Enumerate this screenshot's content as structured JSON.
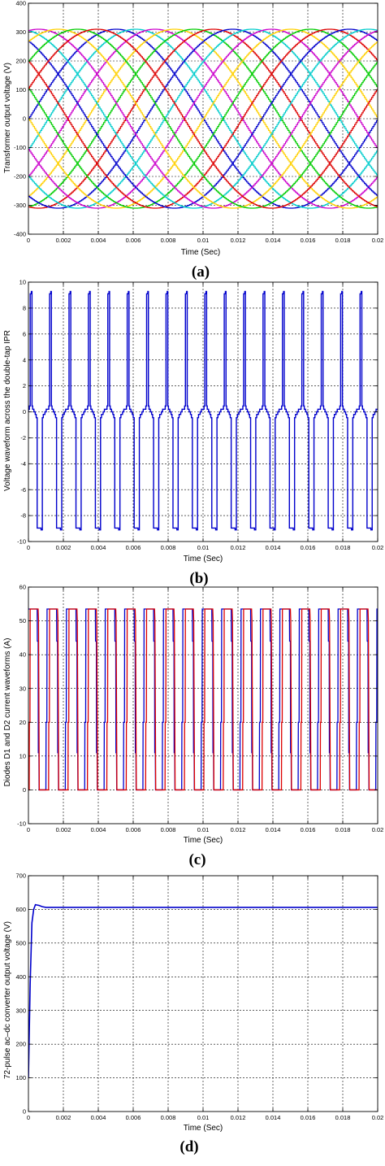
{
  "chart_data": [
    {
      "type": "line",
      "panel_label": "(a)",
      "xlabel": "Time (Sec)",
      "ylabel": "Transformer output voltage (V)",
      "xlim": [
        0,
        0.02
      ],
      "ylim": [
        -400,
        400
      ],
      "xticks": [
        "0",
        "0.002",
        "0.004",
        "0.006",
        "0.008",
        "0.01",
        "0.012",
        "0.014",
        "0.016",
        "0.018",
        "0.02"
      ],
      "yticks": [
        "400",
        "300",
        "200",
        "100",
        "0",
        "-100",
        "-200",
        "-300",
        "-400"
      ],
      "grid": true,
      "waveform": {
        "kind": "stepped-sine",
        "amplitude": 310,
        "frequency_hz": 50,
        "phase_count": 18,
        "steps_per_period": 288
      },
      "series_colors": [
        "#0000cc",
        "#00cccc",
        "#cc00cc",
        "#ffd000",
        "#00cc00",
        "#dd0000"
      ]
    },
    {
      "type": "line",
      "panel_label": "(b)",
      "xlabel": "Time (Sec)",
      "ylabel": "Voltage waveform across the double-tap IPR",
      "xlim": [
        0,
        0.02
      ],
      "ylim": [
        -10,
        10
      ],
      "xticks": [
        "0",
        "0.002",
        "0.004",
        "0.006",
        "0.008",
        "0.01",
        "0.012",
        "0.014",
        "0.016",
        "0.018",
        "0.02"
      ],
      "yticks": [
        "10",
        "8",
        "6",
        "4",
        "2",
        "0",
        "-2",
        "-4",
        "-6",
        "-8",
        "-10"
      ],
      "grid": true,
      "waveform": {
        "kind": "pulse-train",
        "peak": 9.1,
        "pulse_count": 18,
        "period_s": 0.0011111,
        "step_levels": [
          0,
          0.2,
          0.45
        ]
      },
      "series_colors": [
        "#0000cc"
      ]
    },
    {
      "type": "line",
      "panel_label": "(c)",
      "xlabel": "Time (Sec)",
      "ylabel": "Diodes D1 and D2 current waveforms (A)",
      "xlim": [
        0,
        0.02
      ],
      "ylim": [
        -10,
        60
      ],
      "xticks": [
        "0",
        "0.002",
        "0.004",
        "0.006",
        "0.008",
        "0.01",
        "0.012",
        "0.014",
        "0.016",
        "0.018",
        "0.02"
      ],
      "yticks": [
        "60",
        "50",
        "40",
        "30",
        "20",
        "10",
        "0",
        "-10"
      ],
      "grid": true,
      "waveform": {
        "kind": "complementary-square",
        "high": 53.5,
        "low": 0,
        "period_s": 0.0011111
      },
      "series": [
        {
          "color": "#0000cc"
        },
        {
          "color": "#dd0000"
        }
      ]
    },
    {
      "type": "line",
      "panel_label": "(d)",
      "xlabel": "Time (Sec)",
      "ylabel": "72-pulse ac–dc converter output voltage (V)",
      "xlim": [
        0,
        0.02
      ],
      "ylim": [
        0,
        700
      ],
      "xticks": [
        "0",
        "0.002",
        "0.004",
        "0.006",
        "0.008",
        "0.01",
        "0.012",
        "0.014",
        "0.016",
        "0.018",
        "0.02"
      ],
      "yticks": [
        "700",
        "600",
        "500",
        "400",
        "300",
        "200",
        "100",
        "0"
      ],
      "grid": true,
      "x": [
        0,
        0.0001,
        0.0002,
        0.0003,
        0.0004,
        0.0006,
        0.0008,
        0.001,
        0.002,
        0.005,
        0.01,
        0.015,
        0.02
      ],
      "y": [
        100,
        380,
        560,
        600,
        614,
        612,
        608,
        606,
        606,
        606,
        606,
        606,
        606
      ],
      "series_colors": [
        "#0000cc"
      ]
    }
  ]
}
